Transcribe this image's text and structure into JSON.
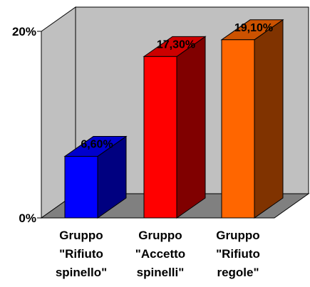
{
  "chart_data": {
    "type": "bar",
    "three_d": true,
    "categories": [
      [
        "Gruppo",
        "\"Rifiuto",
        "spinello\""
      ],
      [
        "Gruppo",
        "\"Accetto",
        "spinelli\""
      ],
      [
        "Gruppo",
        "\"Rifiuto",
        "regole\""
      ]
    ],
    "values": [
      6.6,
      17.3,
      19.1
    ],
    "data_labels": [
      "6,60%",
      "17,30%",
      "19,10%"
    ],
    "y_ticks": [
      {
        "value": 0,
        "label": "0%"
      },
      {
        "value": 20,
        "label": "20%"
      }
    ],
    "ylim": [
      0,
      20
    ],
    "grid": false,
    "legend": "none",
    "colors": {
      "bars": [
        {
          "front": "#0000ff",
          "top": "#0000cc",
          "side": "#000080"
        },
        {
          "front": "#ff0000",
          "top": "#cc0000",
          "side": "#800000"
        },
        {
          "front": "#ff6600",
          "top": "#cc5200",
          "side": "#803300"
        }
      ],
      "back_wall": "#c0c0c0",
      "floor": "#808080"
    }
  }
}
